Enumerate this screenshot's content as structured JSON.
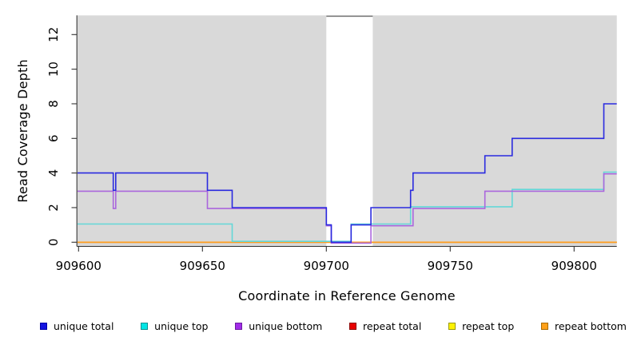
{
  "chart_data": {
    "type": "line",
    "subtype": "step-coverage",
    "title": "",
    "xlabel": "Coordinate in Reference Genome",
    "ylabel": "Read Coverage Depth",
    "x_ticks": [
      909600,
      909650,
      909700,
      909750,
      909800
    ],
    "y_ticks": [
      0,
      2,
      4,
      6,
      8,
      10,
      12
    ],
    "xlim": [
      909599.5,
      909817.5
    ],
    "ylim": [
      0,
      13
    ],
    "grid": false,
    "plot_background_color": "#D9D9D9",
    "unshaded_window": {
      "start": 909700,
      "end": 909718,
      "fill": "#FFFFFF",
      "cap_line_color": "#7B7B7B"
    },
    "legend_position": "bottom",
    "series": [
      {
        "name": "unique total",
        "legend_color": "#1414E0",
        "legend_border": "#0000A8",
        "line_color": "#2A2ADF",
        "points": [
          [
            909599.5,
            4
          ],
          [
            909614,
            3
          ],
          [
            909615,
            4
          ],
          [
            909652,
            3
          ],
          [
            909662,
            2
          ],
          [
            909700,
            1
          ],
          [
            909702,
            0
          ],
          [
            909710,
            1
          ],
          [
            909718,
            2
          ],
          [
            909734,
            3
          ],
          [
            909735,
            4
          ],
          [
            909764,
            5
          ],
          [
            909775,
            6
          ],
          [
            909812,
            8
          ],
          [
            909817.5,
            8
          ]
        ]
      },
      {
        "name": "unique top",
        "legend_color": "#00E5E5",
        "legend_border": "#0A8F8F",
        "line_color": "#63D8D8",
        "points": [
          [
            909599.5,
            1
          ],
          [
            909662,
            0
          ],
          [
            909710,
            1
          ],
          [
            909734,
            2
          ],
          [
            909775,
            3
          ],
          [
            909812,
            4
          ],
          [
            909817.5,
            4
          ]
        ]
      },
      {
        "name": "unique bottom",
        "legend_color": "#A22CE8",
        "legend_border": "#6A1BA0",
        "line_color": "#AA66DD",
        "points": [
          [
            909599.5,
            3
          ],
          [
            909614,
            2
          ],
          [
            909615,
            3
          ],
          [
            909652,
            2
          ],
          [
            909700,
            1
          ],
          [
            909702,
            0
          ],
          [
            909718,
            1
          ],
          [
            909735,
            2
          ],
          [
            909764,
            3
          ],
          [
            909812,
            4
          ],
          [
            909817.5,
            4
          ]
        ]
      },
      {
        "name": "repeat total",
        "legend_color": "#E80000",
        "legend_border": "#8B0000",
        "line_color": "#DD3344",
        "points": [
          [
            909599.5,
            0
          ],
          [
            909817.5,
            0
          ]
        ]
      },
      {
        "name": "repeat top",
        "legend_color": "#FFF200",
        "legend_border": "#9A9A00",
        "line_color": "#EEDD00",
        "points": [
          [
            909599.5,
            0
          ],
          [
            909817.5,
            0
          ]
        ]
      },
      {
        "name": "repeat bottom",
        "legend_color": "#FFA018",
        "legend_border": "#A86A00",
        "line_color": "#FF9E1F",
        "points": [
          [
            909599.5,
            0
          ],
          [
            909817.5,
            0
          ]
        ]
      }
    ]
  }
}
